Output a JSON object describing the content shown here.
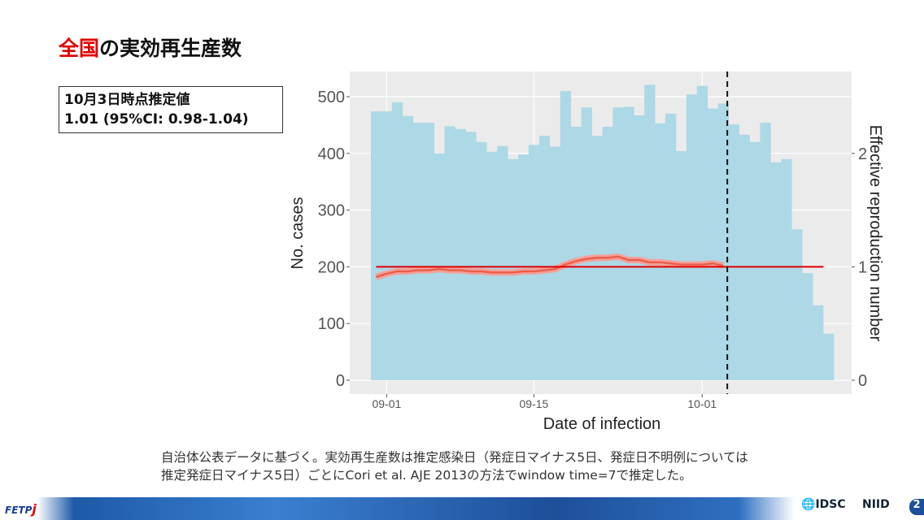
{
  "title": {
    "highlight": "全国",
    "rest": "の実効再生産数"
  },
  "estimate_box": {
    "line1": "10月3日時点推定値",
    "line2": "1.01 (95%CI: 0.98-1.04)"
  },
  "note": {
    "line1": "自治体公表データに基づく。実効再生産数は推定感染日（発症日マイナス5日、発症日不明例については",
    "line2": "推定発症日マイナス5日）ごとにCori et al. AJE 2013の方法でwindow time=7で推定した。"
  },
  "footer": {
    "logo_left": "FETP",
    "logo_left_j": "j",
    "logo_idsc": "IDSC",
    "logo_niid": "NIID",
    "page": "2"
  },
  "colors": {
    "bar": "#add8e6",
    "panel": "#ebebeb",
    "rt_line": "#e8604c",
    "reference": "#e00000"
  },
  "chart_data": {
    "type": "bar",
    "xlabel": "Date of infection",
    "ylabel": "No. cases",
    "y2label": "Effective reproduction number",
    "ylim": [
      0,
      550
    ],
    "yticks": [
      0,
      100,
      200,
      300,
      400,
      500
    ],
    "y2ticks": [
      0,
      1,
      2
    ],
    "y2_scale_cases_per_unit": 200,
    "first_date": "08-31",
    "xticks": [
      {
        "label": "09-01",
        "day": 1
      },
      {
        "label": "09-15",
        "day": 15
      },
      {
        "label": "10-01",
        "day": 31
      }
    ],
    "values": [
      474,
      474,
      490,
      466,
      454,
      454,
      400,
      448,
      443,
      438,
      420,
      403,
      413,
      390,
      398,
      415,
      431,
      412,
      510,
      447,
      481,
      431,
      447,
      481,
      482,
      467,
      521,
      453,
      470,
      404,
      504,
      519,
      479,
      488,
      451,
      433,
      420,
      454,
      384,
      390,
      266,
      189,
      132,
      82
    ],
    "rt": {
      "name": "Rt",
      "start_day": 0,
      "values": [
        0.91,
        0.94,
        0.96,
        0.96,
        0.97,
        0.97,
        0.98,
        0.97,
        0.97,
        0.96,
        0.96,
        0.95,
        0.95,
        0.95,
        0.96,
        0.96,
        0.97,
        0.98,
        1.02,
        1.05,
        1.07,
        1.08,
        1.08,
        1.09,
        1.06,
        1.06,
        1.04,
        1.04,
        1.03,
        1.02,
        1.02,
        1.02,
        1.03,
        1.01
      ]
    },
    "reference_line": {
      "y2": 1,
      "from_day": 0,
      "to_day": 43
    },
    "vline": {
      "day": 33,
      "label": "10-03"
    }
  }
}
